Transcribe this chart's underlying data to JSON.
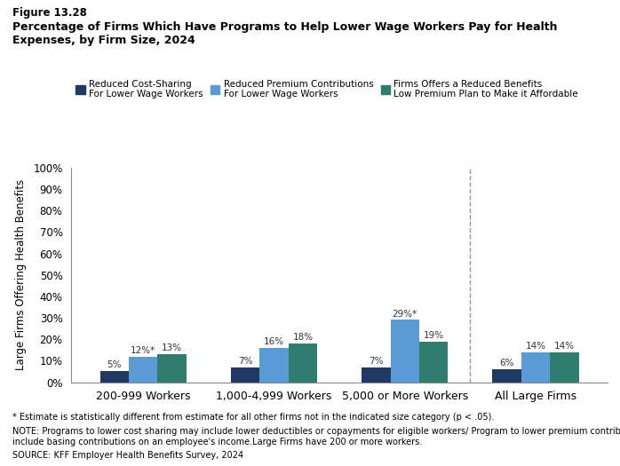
{
  "title_line1": "Figure 13.28",
  "title_line2": "Percentage of Firms Which Have Programs to Help Lower Wage Workers Pay for Health\nExpenses, by Firm Size, 2024",
  "categories": [
    "200-999 Workers",
    "1,000-4,999 Workers",
    "5,000 or More Workers",
    "All Large Firms"
  ],
  "series": [
    {
      "name": "Reduced Cost-Sharing\nFor Lower Wage Workers",
      "values": [
        5,
        7,
        7,
        6
      ],
      "color": "#1f3864"
    },
    {
      "name": "Reduced Premium Contributions\nFor Lower Wage Workers",
      "values": [
        12,
        16,
        29,
        14
      ],
      "color": "#5b9bd5"
    },
    {
      "name": "Firms Offers a Reduced Benefits\nLow Premium Plan to Make it Affordable",
      "values": [
        13,
        18,
        19,
        14
      ],
      "color": "#2e7d6e"
    }
  ],
  "labels": [
    "5%",
    "12%*",
    "13%",
    "7%",
    "16%",
    "18%",
    "7%",
    "29%*",
    "19%",
    "6%",
    "14%",
    "14%"
  ],
  "ylabel": "Large Firms Offering Health Benefits",
  "ylim": [
    0,
    100
  ],
  "yticks": [
    0,
    10,
    20,
    30,
    40,
    50,
    60,
    70,
    80,
    90,
    100
  ],
  "ytick_labels": [
    "0%",
    "10%",
    "20%",
    "30%",
    "40%",
    "50%",
    "60%",
    "70%",
    "80%",
    "90%",
    "100%"
  ],
  "dashed_line_x": 2.5,
  "footnote1": "* Estimate is statistically different from estimate for all other firms not in the indicated size category (p < .05).",
  "footnote2": "NOTE: Programs to lower cost sharing may include lower deductibles or copayments for eligible workers/ Program to lower premium contributions may\ninclude basing contributions on an employee's income.Large Firms have 200 or more workers.",
  "footnote3": "SOURCE: KFF Employer Health Benefits Survey, 2024",
  "bar_width": 0.22,
  "background_color": "#ffffff"
}
